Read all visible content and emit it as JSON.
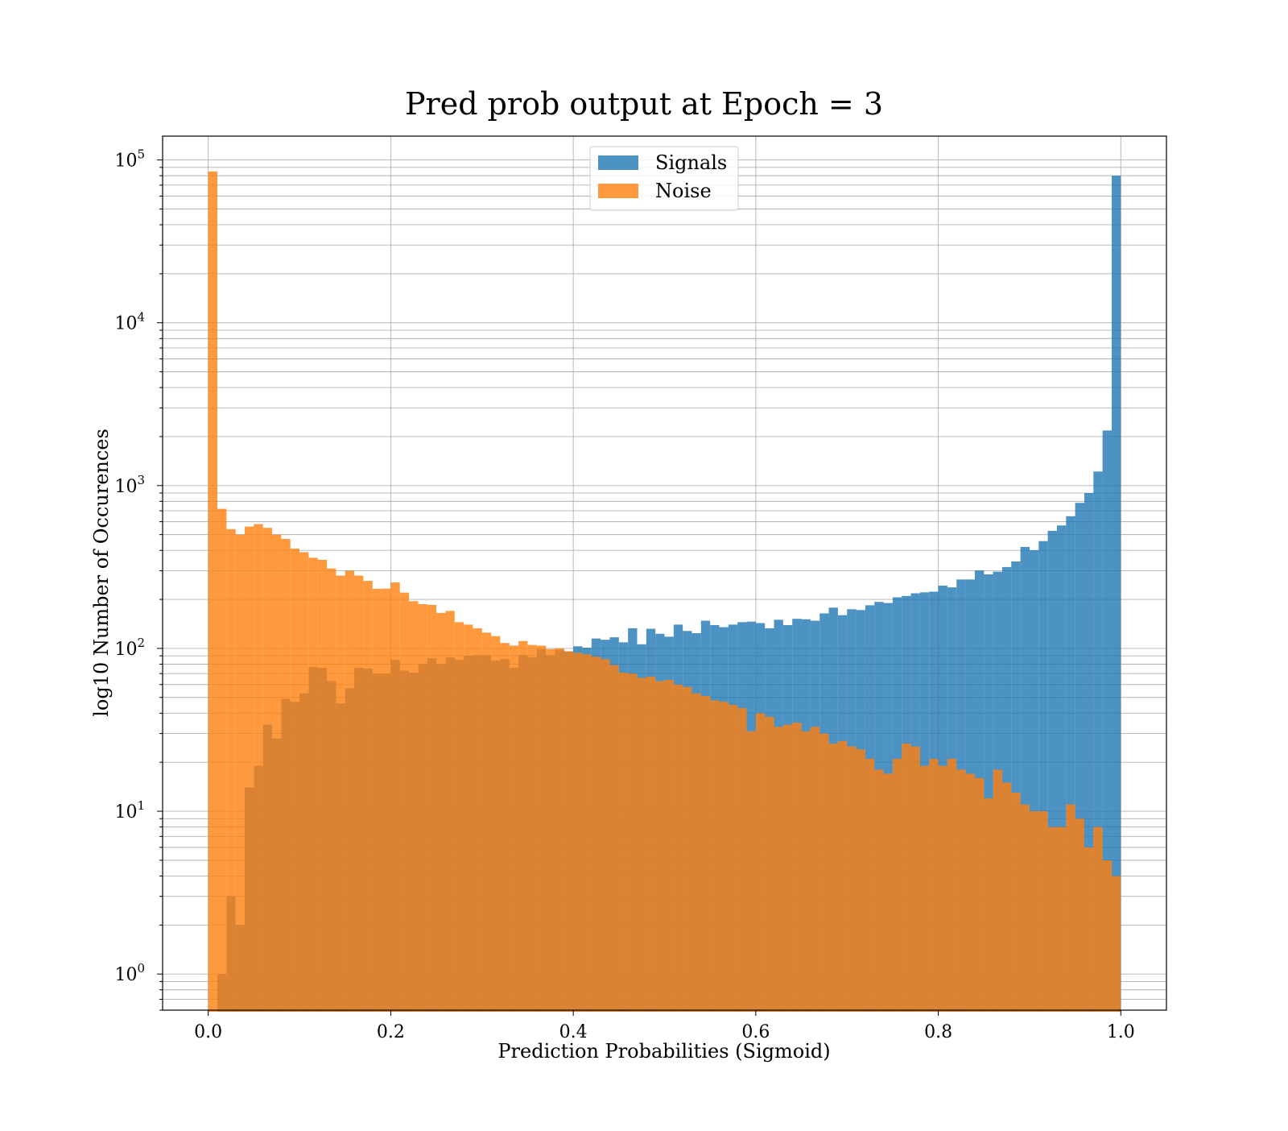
{
  "chart_data": {
    "type": "bar",
    "title": "Pred prob output at Epoch = 3",
    "xlabel": "Prediction Probabilities (Sigmoid)",
    "ylabel": "log10 Number of Occurences",
    "x_ticks": [
      0.0,
      0.2,
      0.4,
      0.6,
      0.8,
      1.0
    ],
    "x_tick_labels": [
      "0.0",
      "0.2",
      "0.4",
      "0.6",
      "0.8",
      "1.0"
    ],
    "y_scale": "log",
    "y_ticks": [
      {
        "value": 1,
        "base": "10",
        "exp": "0"
      },
      {
        "value": 10,
        "base": "10",
        "exp": "1"
      },
      {
        "value": 100,
        "base": "10",
        "exp": "2"
      },
      {
        "value": 1000,
        "base": "10",
        "exp": "3"
      },
      {
        "value": 10000,
        "base": "10",
        "exp": "4"
      },
      {
        "value": 100000,
        "base": "10",
        "exp": "5"
      }
    ],
    "xlim": [
      -0.05,
      1.05
    ],
    "ylim": [
      0.6,
      140000
    ],
    "grid": true,
    "legend_position": "top-center",
    "bin_start": 0.0,
    "bin_width": 0.01,
    "series": [
      {
        "name": "Signals",
        "color": "#1f77b4",
        "alpha": 0.8,
        "values": [
          0,
          1,
          3,
          2,
          14,
          19,
          34,
          28,
          49,
          47,
          53,
          77,
          76,
          63,
          46,
          57,
          76,
          75,
          70,
          70,
          85,
          73,
          71,
          80,
          87,
          80,
          88,
          85,
          90,
          91,
          91,
          84,
          86,
          76,
          91,
          88,
          99,
          91,
          98,
          96,
          103,
          101,
          115,
          113,
          117,
          109,
          133,
          106,
          132,
          123,
          118,
          140,
          128,
          124,
          148,
          139,
          135,
          140,
          145,
          146,
          143,
          133,
          150,
          139,
          152,
          151,
          148,
          164,
          178,
          160,
          174,
          172,
          184,
          193,
          190,
          206,
          210,
          218,
          221,
          223,
          243,
          237,
          265,
          265,
          301,
          285,
          296,
          316,
          342,
          420,
          401,
          456,
          527,
          569,
          648,
          783,
          900,
          1220,
          2180,
          80000
        ]
      },
      {
        "name": "Noise",
        "color": "#ff7f0e",
        "alpha": 0.8,
        "values": [
          85000,
          720,
          540,
          500,
          560,
          580,
          550,
          500,
          470,
          410,
          390,
          360,
          350,
          310,
          280,
          300,
          280,
          260,
          232,
          233,
          254,
          220,
          195,
          187,
          185,
          165,
          170,
          145,
          140,
          133,
          125,
          119,
          108,
          104,
          111,
          105,
          104,
          99,
          100,
          96,
          94,
          92,
          89,
          86,
          79,
          71,
          70,
          66,
          67,
          63,
          64,
          60,
          58,
          53,
          51,
          48,
          47,
          45,
          43,
          31,
          40,
          38,
          33,
          34,
          35,
          31,
          33,
          30,
          26,
          27,
          25,
          24,
          21,
          18,
          17,
          21,
          26,
          25,
          19,
          21,
          19,
          21,
          18,
          17,
          16,
          12,
          18,
          15,
          13,
          11,
          10,
          10,
          8,
          8,
          11,
          9,
          6,
          8,
          5,
          4
        ]
      }
    ]
  }
}
